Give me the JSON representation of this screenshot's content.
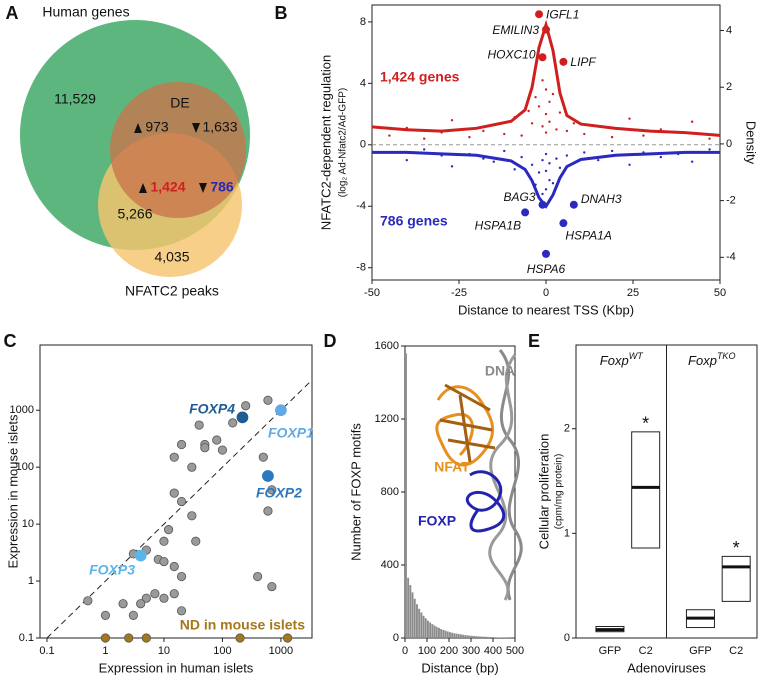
{
  "chart_data": [
    {
      "type": "venn",
      "panel": "A",
      "sets": [
        {
          "name": "Human genes",
          "color": "#5cb67e"
        },
        {
          "name": "DE",
          "color": "#c9744a"
        },
        {
          "name": "NFATC2 peaks",
          "color": "#f6c46e"
        }
      ],
      "values": [
        11529,
        973,
        1633,
        1424,
        786,
        5266,
        4035
      ],
      "value_labels": [
        "11,529",
        "973",
        "1,633",
        "1,424",
        "786",
        "5,266",
        "4,035"
      ],
      "value_colors": [
        "#111111",
        "#111111",
        "#111111",
        "#d01f1f",
        "#2a2aaf",
        "#111111",
        "#111111"
      ]
    },
    {
      "type": "scatter",
      "panel": "B",
      "xlabel": "Distance to nearest TSS (Kbp)",
      "ylabel": "NFATC2-dependent regulation",
      "ylabel_sub": "(log₂ Ad-Nfatc2/Ad-GFP)",
      "y2label": "Density",
      "xlim": [
        -50,
        50
      ],
      "xticks": [
        -50,
        -25,
        0,
        25,
        50
      ],
      "ylim": [
        -8.8,
        9.1
      ],
      "yticks": [
        -8,
        -4,
        0,
        4,
        8
      ],
      "y2lim": [
        -4.8,
        4.9
      ],
      "y2ticks": [
        -4,
        -2,
        0,
        2,
        4
      ],
      "zero_line": true,
      "marker": "dot",
      "series": [
        {
          "name": "1,424 genes",
          "color": "#d01f1f",
          "x": [
            -45,
            -40,
            -35,
            -30,
            -27,
            -22,
            -18,
            -15,
            -12,
            -9,
            -7,
            -5,
            -4,
            -3,
            -2,
            -1,
            -1,
            0,
            0,
            0,
            1,
            1,
            2,
            3,
            4,
            6,
            8,
            11,
            15,
            19,
            24,
            28,
            33,
            38,
            42,
            47
          ],
          "values": [
            0.6,
            1.1,
            0.4,
            0.8,
            1.6,
            0.5,
            0.9,
            1.3,
            0.7,
            1.8,
            0.6,
            2.2,
            1.4,
            3.1,
            2.5,
            4.2,
            1.2,
            3.6,
            0.8,
            2.0,
            2.8,
            1.5,
            3.3,
            1.0,
            2.1,
            0.9,
            1.4,
            0.7,
            1.2,
            0.5,
            1.7,
            0.6,
            1.0,
            0.8,
            1.5,
            0.4
          ]
        },
        {
          "name": "786 genes",
          "color": "#2a2ac0",
          "x": [
            -45,
            -40,
            -35,
            -30,
            -27,
            -22,
            -18,
            -15,
            -12,
            -9,
            -7,
            -5,
            -4,
            -3,
            -2,
            -1,
            -1,
            0,
            0,
            0,
            1,
            1,
            2,
            3,
            4,
            6,
            8,
            11,
            15,
            19,
            24,
            28,
            33,
            38,
            42,
            47
          ],
          "values": [
            -0.5,
            -1.0,
            -0.3,
            -0.7,
            -1.4,
            -0.6,
            -0.9,
            -1.1,
            -0.4,
            -1.6,
            -0.8,
            -2.0,
            -1.3,
            -2.6,
            -1.8,
            -3.2,
            -1.0,
            -2.9,
            -0.6,
            -1.7,
            -2.3,
            -1.2,
            -2.5,
            -0.9,
            -1.5,
            -0.7,
            -1.2,
            -0.5,
            -1.0,
            -0.4,
            -1.3,
            -0.5,
            -0.8,
            -0.6,
            -1.1,
            -0.3
          ]
        }
      ],
      "curves": [
        {
          "color": "#d01f1f",
          "axis": "y2",
          "x": [
            -50,
            -40,
            -30,
            -20,
            -10,
            -6,
            -4,
            -2,
            0,
            2,
            4,
            6,
            10,
            20,
            30,
            40,
            50
          ],
          "values": [
            0.6,
            0.5,
            0.45,
            0.55,
            0.8,
            1.2,
            2.0,
            3.4,
            4.2,
            3.3,
            1.8,
            1.0,
            0.7,
            0.55,
            0.45,
            0.4,
            0.3
          ]
        },
        {
          "color": "#2a2ac0",
          "axis": "y2",
          "x": [
            -50,
            -40,
            -30,
            -20,
            -10,
            -6,
            -4,
            -2,
            0,
            2,
            4,
            6,
            10,
            20,
            30,
            40,
            50
          ],
          "values": [
            -0.3,
            -0.3,
            -0.35,
            -0.4,
            -0.6,
            -0.9,
            -1.3,
            -1.9,
            -2.2,
            -1.8,
            -1.2,
            -0.8,
            -0.55,
            -0.4,
            -0.35,
            -0.3,
            -0.3
          ]
        }
      ],
      "labeled_points": [
        {
          "label": "IGFL1",
          "x": -2,
          "y": 8.5,
          "color": "#d01f1f"
        },
        {
          "label": "EMILIN3",
          "x": 0,
          "y": 7.5,
          "color": "#d01f1f"
        },
        {
          "label": "HOXC10",
          "x": -1,
          "y": 5.7,
          "color": "#d01f1f"
        },
        {
          "label": "LIPF",
          "x": 5,
          "y": 5.4,
          "color": "#d01f1f"
        },
        {
          "label": "BAG3",
          "x": -1,
          "y": -3.9,
          "color": "#2a2ac0"
        },
        {
          "label": "DNAH3",
          "x": 8,
          "y": -3.9,
          "color": "#2a2ac0"
        },
        {
          "label": "HSPA1B",
          "x": -6,
          "y": -4.4,
          "color": "#2a2ac0"
        },
        {
          "label": "HSPA1A",
          "x": 5,
          "y": -5.1,
          "color": "#2a2ac0"
        },
        {
          "label": "HSPA6",
          "x": 0,
          "y": -7.1,
          "color": "#2a2ac0"
        }
      ]
    },
    {
      "type": "scatter",
      "panel": "C",
      "xlabel": "Expression in human islets",
      "ylabel": "Expression in mouse islets",
      "log_x": true,
      "log_y": true,
      "xlim": [
        0.076,
        3400
      ],
      "xticks": [
        0.1,
        1,
        10,
        100,
        1000
      ],
      "ylim": [
        0.1,
        14000
      ],
      "yticks": [
        0.1,
        1,
        10,
        100,
        1000
      ],
      "diagonal": true,
      "marker": "circle",
      "series": [
        {
          "color": "#9a9a9a",
          "x": [
            600,
            250,
            150,
            40,
            50,
            80,
            50,
            20,
            30,
            100,
            15,
            500,
            700,
            600,
            15,
            20,
            30,
            12,
            10,
            35,
            3,
            5,
            8,
            10,
            15,
            20,
            15,
            10,
            7,
            5,
            4,
            3,
            2,
            0.5,
            1,
            700,
            400,
            20
          ],
          "values": [
            1500,
            1200,
            600,
            550,
            250,
            300,
            220,
            250,
            100,
            200,
            150,
            150,
            40,
            17,
            35,
            25,
            14,
            8,
            5,
            5,
            3,
            3.5,
            2.4,
            2.2,
            1.8,
            1.2,
            0.6,
            0.5,
            0.6,
            0.5,
            0.4,
            0.25,
            0.4,
            0.45,
            0.25,
            0.8,
            1.2,
            0.3
          ]
        },
        {
          "name": "ND in mouse islets",
          "color": "#a5781c",
          "x": [
            1,
            2.5,
            5,
            200,
            1300
          ],
          "values": [
            0.1,
            0.1,
            0.1,
            0.1,
            0.1
          ]
        },
        {
          "name": "FOXP4",
          "color": "#1e5c95",
          "x": [
            220
          ],
          "values": [
            750
          ]
        },
        {
          "name": "FOXP1",
          "color": "#62a9e6",
          "x": [
            1000
          ],
          "values": [
            1000
          ]
        },
        {
          "name": "FOXP2",
          "color": "#2a78bf",
          "x": [
            600
          ],
          "values": [
            70
          ]
        },
        {
          "name": "FOXP3",
          "color": "#5bb4ea",
          "x": [
            4
          ],
          "values": [
            2.8
          ]
        }
      ]
    },
    {
      "type": "histogram",
      "panel": "D",
      "xlabel": "Distance (bp)",
      "ylabel": "Number of FOXP motifs",
      "xlim": [
        0,
        500
      ],
      "xticks": [
        0,
        100,
        200,
        300,
        400,
        500
      ],
      "ylim": [
        0,
        1600
      ],
      "yticks": [
        0,
        400,
        800,
        1200,
        1600
      ],
      "color": "#8c8c8c",
      "bins": [
        0,
        10,
        20,
        30,
        40,
        50,
        60,
        70,
        80,
        90,
        100,
        110,
        120,
        130,
        140,
        150,
        160,
        170,
        180,
        190,
        200,
        210,
        220,
        230,
        240,
        250,
        260,
        270,
        280,
        290,
        300,
        310,
        320,
        330,
        340,
        350,
        360,
        370,
        380,
        390,
        400,
        410,
        420,
        430,
        440,
        450,
        460,
        470,
        480,
        490,
        500
      ],
      "counts": [
        1560,
        330,
        290,
        250,
        215,
        185,
        160,
        140,
        122,
        108,
        95,
        85,
        76,
        68,
        61,
        55,
        49,
        44,
        40,
        36,
        32,
        29,
        26,
        24,
        22,
        20,
        18,
        16,
        15,
        13,
        12,
        11,
        10,
        9,
        8,
        7,
        7,
        6,
        5,
        5,
        4,
        4,
        3,
        3,
        3,
        2,
        2,
        2,
        1,
        1
      ],
      "annotations": [
        {
          "text": "DNA",
          "color": "#8a8a8a"
        },
        {
          "text": "NFAT",
          "color": "#e8901e"
        },
        {
          "text": "FOXP",
          "color": "#2323b0"
        }
      ]
    },
    {
      "type": "box",
      "panel": "E",
      "xlabel": "Adenoviruses",
      "ylabel": "Cellular proliferation",
      "ylabel_sub": "(cpm/mg protein)",
      "ylim": [
        0,
        2.8
      ],
      "yticks": [
        0,
        1,
        2
      ],
      "groups": [
        {
          "label": "Foxp",
          "label_sup": "WT",
          "categories": [
            "GFP",
            "C2"
          ],
          "low": [
            0.06,
            0.86
          ],
          "median": [
            0.08,
            1.44
          ],
          "high": [
            0.11,
            1.97
          ],
          "flags": [
            null,
            "*"
          ]
        },
        {
          "label": "Foxp",
          "label_sup": "TKO",
          "categories": [
            "GFP",
            "C2"
          ],
          "low": [
            0.1,
            0.35
          ],
          "median": [
            0.19,
            0.68
          ],
          "high": [
            0.27,
            0.78
          ],
          "flags": [
            null,
            "*"
          ]
        }
      ]
    }
  ]
}
